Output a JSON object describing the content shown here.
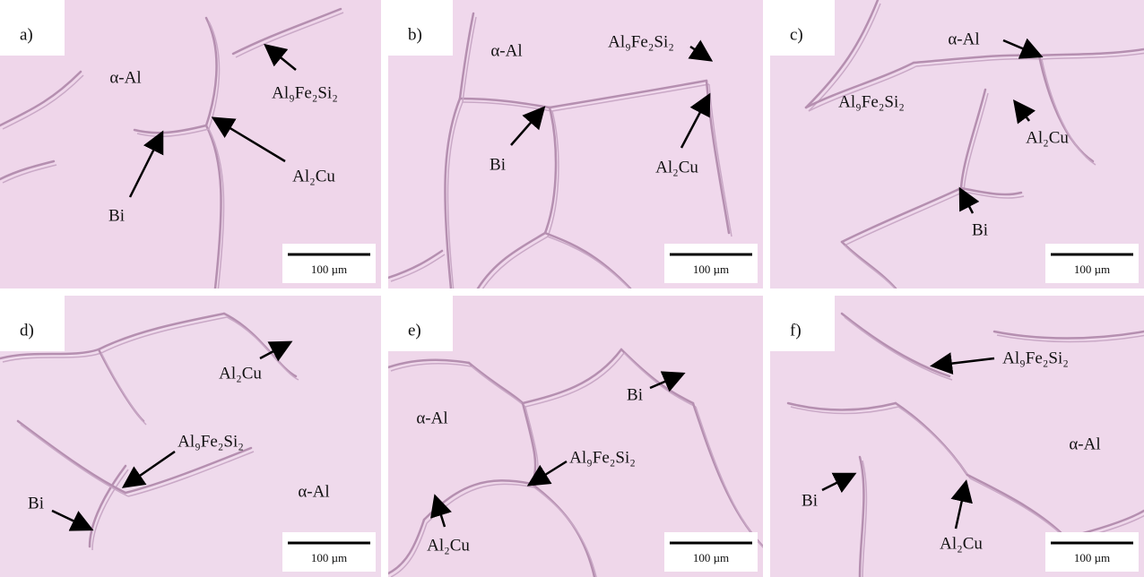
{
  "panels": [
    {
      "label": "a)",
      "annotations": [
        "α-Al",
        "Al₉Fe₂Si₂",
        "Bi",
        "Al₂Cu"
      ],
      "scale_bar": "100 µm"
    },
    {
      "label": "b)",
      "annotations": [
        "α-Al",
        "Al₉Fe₂Si₂",
        "Bi",
        "Al₂Cu"
      ],
      "scale_bar": "100 µm"
    },
    {
      "label": "c)",
      "annotations": [
        "Al₉Fe₂Si₂",
        "α-Al",
        "Al₂Cu",
        "Bi"
      ],
      "scale_bar": "100 µm"
    },
    {
      "label": "d)",
      "annotations": [
        "Al₂Cu",
        "Al₉Fe₂Si₂",
        "α-Al",
        "Bi"
      ],
      "scale_bar": "100 µm"
    },
    {
      "label": "e)",
      "annotations": [
        "Bi",
        "α-Al",
        "Al₉Fe₂Si₂",
        "Al₂Cu"
      ],
      "scale_bar": "100 µm"
    },
    {
      "label": "f)",
      "annotations": [
        "Al₉Fe₂Si₂",
        "α-Al",
        "Bi",
        "Al₂Cu"
      ],
      "scale_bar": "100 µm"
    }
  ]
}
